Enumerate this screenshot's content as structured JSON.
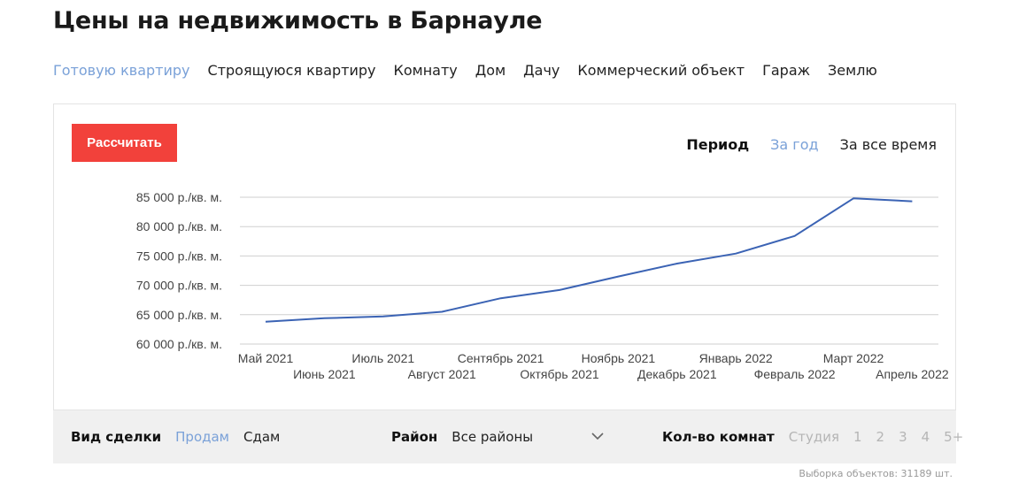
{
  "title": "Цены на недвижимость в Барнауле",
  "property_types": [
    {
      "label": "Готовую квартиру",
      "active": true
    },
    {
      "label": "Строящуюся квартиру",
      "active": false
    },
    {
      "label": "Комнату",
      "active": false
    },
    {
      "label": "Дом",
      "active": false
    },
    {
      "label": "Дачу",
      "active": false
    },
    {
      "label": "Коммерческий объект",
      "active": false
    },
    {
      "label": "Гараж",
      "active": false
    },
    {
      "label": "Землю",
      "active": false
    }
  ],
  "calculate_label": "Рассчитать",
  "period": {
    "label": "Период",
    "options": [
      {
        "label": "За год",
        "active": true
      },
      {
        "label": "За все время",
        "active": false
      }
    ]
  },
  "chart_data": {
    "type": "line",
    "categories": [
      "Май 2021",
      "Июнь 2021",
      "Июль 2021",
      "Август 2021",
      "Сентябрь 2021",
      "Октябрь 2021",
      "Ноябрь 2021",
      "Декабрь 2021",
      "Январь 2022",
      "Февраль 2022",
      "Март 2022",
      "Апрель 2022"
    ],
    "series": [
      {
        "values": [
          63800,
          64400,
          64700,
          65500,
          67800,
          69200,
          71500,
          73700,
          75400,
          78400,
          84800,
          84300
        ]
      }
    ],
    "y_ticks": [
      "60 000 р./кв. м.",
      "65 000 р./кв. м.",
      "70 000 р./кв. м.",
      "75 000 р./кв. м.",
      "80 000 р./кв. м.",
      "85 000 р./кв. м."
    ],
    "y_tick_values": [
      60000,
      65000,
      70000,
      75000,
      80000,
      85000
    ],
    "ylim": [
      60000,
      85000
    ],
    "grid": true,
    "line_color": "#3b63b4"
  },
  "filters": {
    "deal": {
      "label": "Вид сделки",
      "options": [
        {
          "label": "Продам",
          "active": true
        },
        {
          "label": "Сдам",
          "active": false
        }
      ]
    },
    "district": {
      "label": "Район",
      "value": "Все районы"
    },
    "rooms": {
      "label": "Кол-во комнат",
      "options": [
        "Студия",
        "1",
        "2",
        "3",
        "4",
        "5+"
      ]
    }
  },
  "sample_note": "Выборка объектов: 31189 шт."
}
